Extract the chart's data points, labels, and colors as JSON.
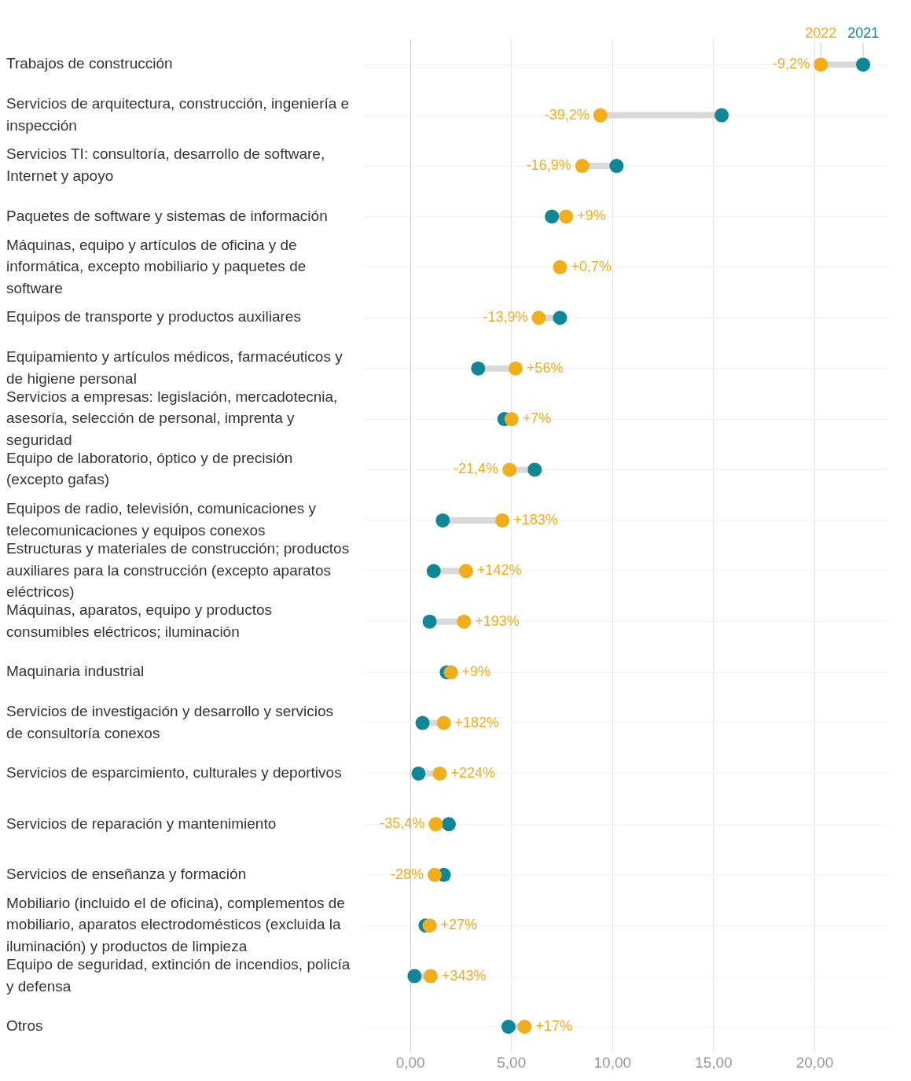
{
  "chart_data": {
    "type": "scatter",
    "orientation": "horizontal",
    "categories": [
      "Trabajos de construcción",
      "Servicios de arquitectura, construcción, ingeniería e inspección",
      "Servicios TI: consultoría, desarrollo de software, Internet y apoyo",
      "Paquetes de software y sistemas de información",
      "Máquinas, equipo y artículos de oficina y de informática, excepto mobiliario y paquetes de software",
      "Equipos de transporte y productos auxiliares",
      "Equipamiento y artículos médicos, farmacéuticos y de higiene personal",
      "Servicios a empresas: legislación, mercadotecnia, asesoría, selección de personal, imprenta y seguridad",
      "Equipo de laboratorio, óptico y de precisión (excepto gafas)",
      "Equipos de radio, televisión, comunicaciones y telecomunicaciones y equipos conexos",
      "Estructuras y materiales de construcción; productos auxiliares para la construcción (excepto aparatos eléctricos)",
      "Máquinas, aparatos, equipo y productos consumibles eléctricos; iluminación",
      "Maquinaria industrial",
      "Servicios de investigación y desarrollo y servicios de consultoría conexos",
      "Servicios de esparcimiento, culturales y deportivos",
      "Servicios de reparación y mantenimiento",
      "Servicios de enseñanza y formación",
      "Mobiliario (incluido el de oficina), complementos de mobiliario, aparatos electrodomésticos (excluida la iluminación) y productos de limpieza",
      "Equipo de seguridad, extinción de incendios, policía y defensa",
      "Otros"
    ],
    "series": [
      {
        "name": "2021",
        "color": "#0f8796",
        "values": [
          22.4,
          15.4,
          10.2,
          7.0,
          null,
          7.4,
          3.35,
          4.65,
          6.15,
          1.6,
          1.15,
          0.95,
          1.8,
          0.6,
          0.4,
          1.9,
          1.65,
          0.75,
          0.2,
          4.85
        ]
      },
      {
        "name": "2022",
        "color": "#f2ad1b",
        "values": [
          20.3,
          9.4,
          8.5,
          7.7,
          7.4,
          6.35,
          5.2,
          5.0,
          4.9,
          4.55,
          2.75,
          2.65,
          2.0,
          1.65,
          1.45,
          1.25,
          1.2,
          0.95,
          1.0,
          5.65
        ]
      }
    ],
    "xlim": [
      -2.3,
      23.6
    ],
    "xticks": [
      {
        "value": 0,
        "label": "0,00"
      },
      {
        "value": 5,
        "label": "5,00"
      },
      {
        "value": 10,
        "label": "10,00"
      },
      {
        "value": 15,
        "label": "15,00"
      },
      {
        "value": 20,
        "label": "20,00"
      }
    ],
    "grid": true,
    "marker": "circle",
    "annotations": [
      {
        "text": "-9,2%",
        "x": 20.3,
        "y": "Trabajos de construcción"
      },
      {
        "text": "-39,2%",
        "x": 9.4,
        "y": "Servicios de arquitectura, construcción, ingeniería e inspección"
      },
      {
        "text": "-16,9%",
        "x": 8.5,
        "y": "Servicios TI: consultoría, desarrollo de software, Internet y apoyo"
      },
      {
        "text": "+9%",
        "x": 7.7,
        "y": "Paquetes de software y sistemas de información"
      },
      {
        "text": "+0,7%",
        "x": 7.4,
        "y": "Máquinas, equipo y artículos de oficina y de informática, excepto mobiliario y paquetes de software"
      },
      {
        "text": "-13,9%",
        "x": 6.35,
        "y": "Equipos de transporte y productos auxiliares"
      },
      {
        "text": "+56%",
        "x": 5.2,
        "y": "Equipamiento y artículos médicos, farmacéuticos y de higiene personal"
      },
      {
        "text": "+7%",
        "x": 5.0,
        "y": "Servicios a empresas: legislación, mercadotecnia, asesoría, selección de personal, imprenta y seguridad"
      },
      {
        "text": "-21,4%",
        "x": 4.9,
        "y": "Equipo de laboratorio, óptico y de precisión (excepto gafas)"
      },
      {
        "text": "+183%",
        "x": 4.55,
        "y": "Equipos de radio, televisión, comunicaciones y telecomunicaciones y equipos conexos"
      },
      {
        "text": "+142%",
        "x": 2.75,
        "y": "Estructuras y materiales de construcción; productos auxiliares para la construcción (excepto aparatos eléctricos)"
      },
      {
        "text": "+193%",
        "x": 2.65,
        "y": "Máquinas, aparatos, equipo y productos consumibles eléctricos; iluminación"
      },
      {
        "text": "+9%",
        "x": 2.0,
        "y": "Maquinaria industrial"
      },
      {
        "text": "+182%",
        "x": 1.65,
        "y": "Servicios de investigación y desarrollo y servicios de consultoría conexos"
      },
      {
        "text": "+224%",
        "x": 1.45,
        "y": "Servicios de esparcimiento, culturales y deportivos"
      },
      {
        "text": "-35,4%",
        "x": 1.25,
        "y": "Servicios de reparación y mantenimiento"
      },
      {
        "text": "-28%",
        "x": 1.2,
        "y": "Servicios de enseñanza y formación"
      },
      {
        "text": "+27%",
        "x": 0.95,
        "y": "Mobiliario (incluido el de oficina), complementos de mobiliario, aparatos electrodomésticos (excluida la iluminación) y productos de limpieza"
      },
      {
        "text": "+343%",
        "x": 1.0,
        "y": "Equipo de seguridad, extinción de incendios, policía y defensa"
      },
      {
        "text": "+17%",
        "x": 5.65,
        "y": "Otros"
      }
    ]
  }
}
